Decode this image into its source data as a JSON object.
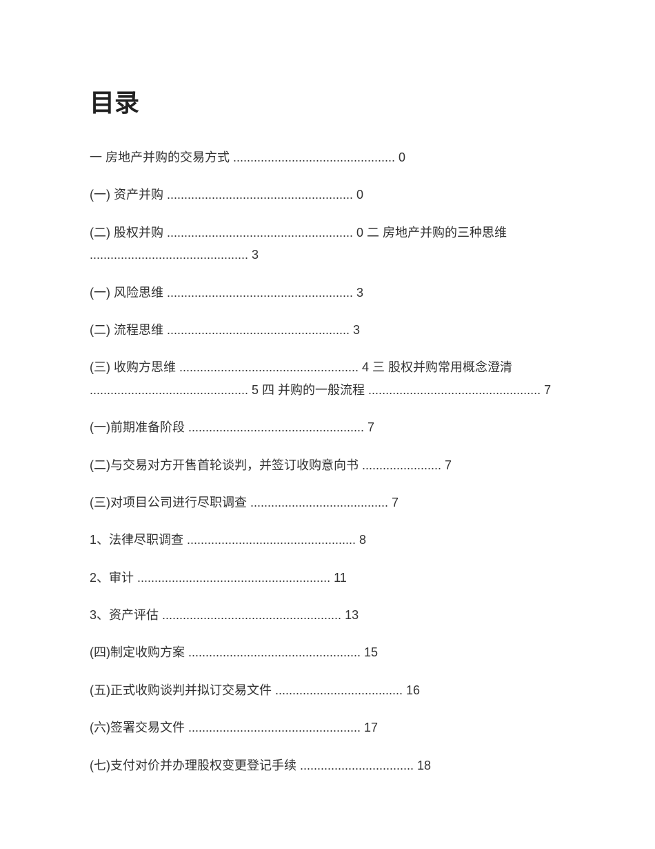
{
  "title": "目录",
  "entries": [
    "一 房地产并购的交易方式 ............................................... 0",
    "(一) 资产并购 ...................................................... 0",
    "(二) 股权并购 ...................................................... 0 二 房地产并购的三种思维 .............................................. 3",
    "(一) 风险思维 ...................................................... 3",
    "(二) 流程思维 ..................................................... 3",
    "(三) 收购方思维 .................................................... 4 三 股权并购常用概念澄清 .............................................. 5 四 并购的一般流程 .................................................. 7",
    "(一)前期准备阶段 ................................................... 7",
    "(二)与交易对方开售首轮谈判，并签订收购意向书 ....................... 7",
    "(三)对项目公司进行尽职调查 ........................................ 7",
    "1、法律尽职调查 ................................................. 8",
    "2、审计 ........................................................ 11",
    "3、资产评估 .................................................... 13",
    "(四)制定收购方案 .................................................. 15",
    "(五)正式收购谈判并拟订交易文件 ..................................... 16",
    "(六)签署交易文件 .................................................. 17",
    "(七)支付对价并办理股权变更登记手续 ................................. 18"
  ]
}
